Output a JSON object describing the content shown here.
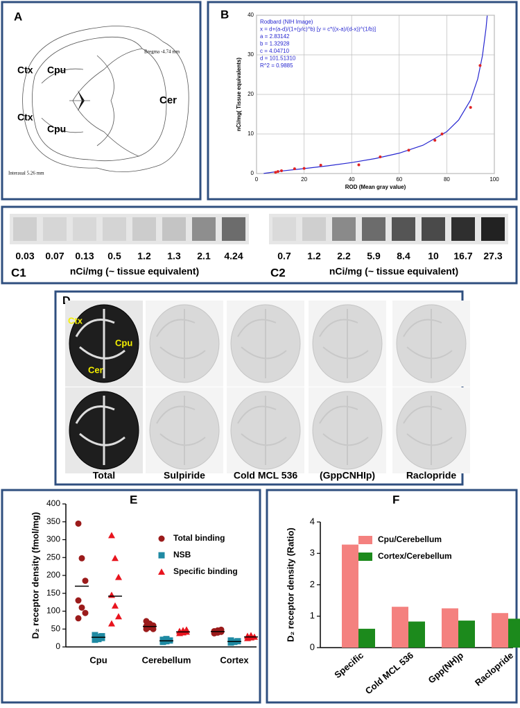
{
  "panel_a": {
    "letter": "A",
    "bregma": "Bregma -4.74 mm",
    "interaural": "Interaual 5.26 mm",
    "labels": [
      "Ctx",
      "Cpu",
      "Ctx",
      "Cpu",
      "Cer"
    ]
  },
  "chart_data": [
    {
      "type": "scatter",
      "letter": "B",
      "annotation": [
        "Rodbard (NIH Image)",
        "x = d+(a-d)/(1+(y/c)^b) [y = c*((x-a)/(d-x))^(1/b)]",
        "a = 2.83142",
        "b = 1.32928",
        "c = 4.04710",
        "d = 101.51310",
        "R^2 = 0.9885"
      ],
      "x_label": "ROD (Mean gray value)",
      "y_label": "nCi/mg( Tissue equivalents)",
      "xlim": [
        0,
        100
      ],
      "xticks": [
        0,
        20,
        40,
        60,
        80,
        100
      ],
      "ylim": [
        0,
        40
      ],
      "yticks": [
        0,
        10,
        20,
        30,
        40
      ],
      "grid": true,
      "points": {
        "color": "#e02424",
        "x": [
          8,
          9,
          10.5,
          16,
          20,
          27,
          43,
          52,
          64,
          75,
          78,
          90,
          94
        ],
        "y": [
          0.3,
          0.5,
          0.7,
          1.2,
          1.3,
          2.1,
          2.2,
          4.2,
          5.9,
          8.4,
          10,
          16.7,
          27.3
        ]
      },
      "curve": {
        "color": "#2626d0",
        "x": [
          3,
          10,
          20,
          30,
          40,
          50,
          60,
          70,
          80,
          85,
          90,
          93,
          95,
          96.5,
          97
        ],
        "y": [
          0.03,
          0.6,
          1.25,
          1.95,
          2.77,
          3.79,
          5.15,
          7.15,
          10.58,
          13.54,
          18.58,
          23.9,
          29.8,
          36.7,
          39.9
        ]
      }
    },
    {
      "type": "strip",
      "letter": "E",
      "y_label": "D₂ receptor density (fmol/mg)",
      "categories": [
        "Cpu",
        "Cerebellum",
        "Cortex"
      ],
      "ylim": [
        0,
        400
      ],
      "yticks": [
        0,
        50,
        100,
        150,
        200,
        250,
        300,
        350,
        400
      ],
      "series": [
        {
          "name": "Total binding",
          "color": "#9b1b1b",
          "marker": "circle",
          "values": [
            [
              345,
              248,
              185,
              130,
              110,
              95,
              80
            ],
            [
              72,
              65,
              60,
              58,
              55,
              50,
              50
            ],
            [
              38,
              40,
              42,
              44,
              46,
              48
            ]
          ],
          "medians": [
            170,
            57,
            43
          ]
        },
        {
          "name": "NSB",
          "color": "#1f8aa3",
          "marker": "square",
          "values": [
            [
              20,
              22,
              25,
              27,
              28,
              30,
              33
            ],
            [
              14,
              16,
              18,
              20,
              22
            ],
            [
              12,
              14,
              16,
              18
            ]
          ],
          "medians": [
            27,
            17,
            15
          ]
        },
        {
          "name": "Specific binding",
          "color": "#e8141e",
          "marker": "triangle",
          "values": [
            [
              312,
              248,
              195,
              145,
              115,
              85,
              65
            ],
            [
              38,
              40,
              42,
              44,
              46,
              48
            ],
            [
              24,
              26,
              28,
              30,
              32
            ]
          ],
          "medians": [
            142,
            42,
            28
          ]
        }
      ]
    },
    {
      "type": "bar",
      "letter": "F",
      "y_label": "D₂ receptor density (Ratio)",
      "categories": [
        "Specific",
        "Cold MCL 536",
        "Gpp(NH)p",
        "Raclopride"
      ],
      "ylim": [
        0,
        4
      ],
      "yticks": [
        0,
        1,
        2,
        3,
        4
      ],
      "series": [
        {
          "name": "Cpu/Cerebellum",
          "color": "#f4817f",
          "values": [
            3.28,
            1.3,
            1.25,
            1.1
          ]
        },
        {
          "name": "Cortex/Cerebellum",
          "color": "#1c8a1c",
          "values": [
            0.6,
            0.83,
            0.86,
            0.92
          ]
        }
      ]
    }
  ],
  "panel_c": {
    "strips": [
      {
        "label": "C1",
        "values": [
          0.03,
          0.07,
          0.13,
          0.5,
          1.2,
          1.3,
          2.1,
          4.24
        ],
        "unit": "nCi/mg (~ tissue equivalent)"
      },
      {
        "label": "C2",
        "values": [
          0.7,
          1.2,
          2.2,
          5.9,
          8.4,
          10,
          16.7,
          27.3
        ],
        "unit": "nCi/mg (~ tissue equivalent)"
      }
    ]
  },
  "panel_d": {
    "letter": "D",
    "labels": [
      "Ctx",
      "Cpu",
      "Cer"
    ],
    "columns": [
      "Total",
      "Sulpiride",
      "Cold MCL 536",
      "(GppCNHIp)",
      "Raclopride"
    ]
  }
}
